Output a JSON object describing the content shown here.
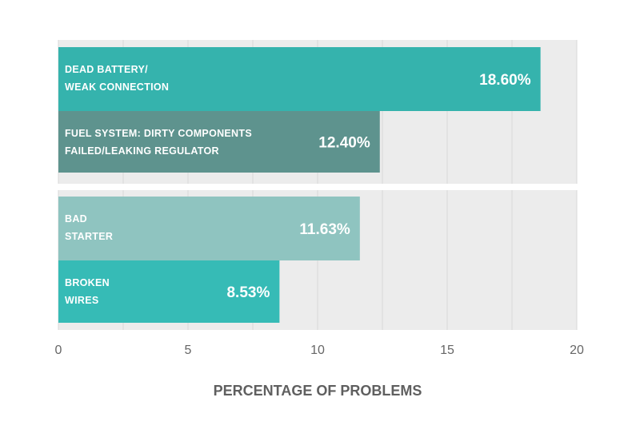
{
  "chart_data": {
    "type": "bar",
    "orientation": "horizontal",
    "xlabel": "PERCENTAGE OF PROBLEMS",
    "xlim": [
      0,
      20
    ],
    "xticks": [
      0,
      5,
      10,
      15,
      20
    ],
    "grid": true,
    "groups": [
      {
        "bars": [
          {
            "label_lines": [
              "DEAD BATTERY/",
              "WEAK CONNECTION"
            ],
            "value": 18.6,
            "value_label": "18.60%",
            "color": "#35b3ad"
          },
          {
            "label_lines": [
              "FUEL SYSTEM: DIRTY COMPONENTS",
              "FAILED/LEAKING REGULATOR"
            ],
            "value": 12.4,
            "value_label": "12.40%",
            "color": "#5e938e"
          }
        ]
      },
      {
        "bars": [
          {
            "label_lines": [
              "BAD",
              "STARTER"
            ],
            "value": 11.63,
            "value_label": "11.63%",
            "color": "#8fc4c0"
          },
          {
            "label_lines": [
              "BROKEN",
              "WIRES"
            ],
            "value": 8.53,
            "value_label": "8.53%",
            "color": "#36bbb6"
          }
        ]
      }
    ]
  }
}
